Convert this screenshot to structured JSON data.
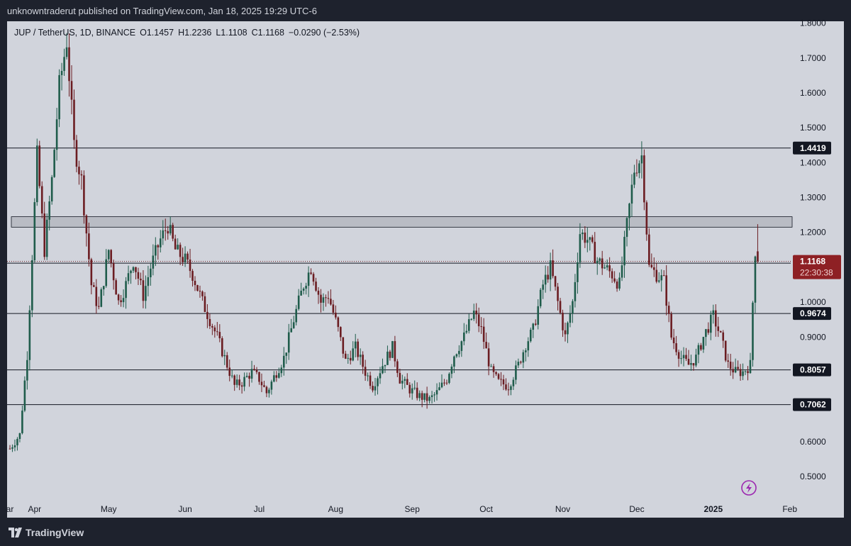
{
  "header": {
    "publisher": "unknowntraderut published on TradingView.com, Jan 18, 2025 19:29 UTC-6"
  },
  "legend": {
    "symbol": "JUP / TetherUS, 1D, BINANCE",
    "open": "O1.1457",
    "high": "H1.2236",
    "low": "L1.1108",
    "close": "C1.1168",
    "change": "−0.0290 (−2.53%)"
  },
  "footer": {
    "brand": "TradingView"
  },
  "colors": {
    "up": "#1f5c4b",
    "down": "#6b1d22",
    "price_tag": "#8e2024",
    "level_tag": "#131722",
    "axis_text": "#131722"
  },
  "chart_data": {
    "type": "candlestick",
    "timeframe": "1D",
    "ylim": [
      0.45,
      1.82
    ],
    "y_ticks": [
      0.5,
      0.6,
      0.7,
      0.8,
      0.9,
      1.0,
      1.1,
      1.2,
      1.3,
      1.4,
      1.5,
      1.6,
      1.7,
      1.8
    ],
    "y_tick_labels": [
      "0.5000",
      "0.6000",
      "0.7000",
      "0.8000",
      "0.9000",
      "1.0000",
      "1.1000",
      "1.2000",
      "1.3000",
      "1.4000",
      "1.5000",
      "1.6000",
      "1.7000",
      "1.8000"
    ],
    "x_labels": [
      {
        "label": "ar",
        "day": 0
      },
      {
        "label": "Apr",
        "day": 10
      },
      {
        "label": "May",
        "day": 40
      },
      {
        "label": "Jun",
        "day": 71
      },
      {
        "label": "Jul",
        "day": 101
      },
      {
        "label": "Aug",
        "day": 132
      },
      {
        "label": "Sep",
        "day": 163
      },
      {
        "label": "Oct",
        "day": 193
      },
      {
        "label": "Nov",
        "day": 224
      },
      {
        "label": "Dec",
        "day": 254
      },
      {
        "label": "2025",
        "day": 285,
        "bold": true
      },
      {
        "label": "Feb",
        "day": 316
      }
    ],
    "levels": [
      1.4419,
      1.1119,
      0.9674,
      0.8057,
      0.7062
    ],
    "level_labels": [
      "1.4419",
      "1.1119",
      "0.9674",
      "0.8057",
      "0.7062"
    ],
    "resistance_zone": [
      1.215,
      1.245
    ],
    "last_price": 1.1168,
    "last_price_label": "1.1168",
    "countdown": "22:30:38",
    "last_day": 303,
    "anchors": [
      [
        0,
        0.58
      ],
      [
        4,
        0.62
      ],
      [
        7,
        0.85
      ],
      [
        11,
        1.42
      ],
      [
        14,
        1.15
      ],
      [
        17,
        1.35
      ],
      [
        20,
        1.62
      ],
      [
        23,
        1.75
      ],
      [
        26,
        1.45
      ],
      [
        29,
        1.35
      ],
      [
        33,
        1.05
      ],
      [
        36,
        0.98
      ],
      [
        40,
        1.15
      ],
      [
        44,
        1.0
      ],
      [
        47,
        1.05
      ],
      [
        50,
        1.12
      ],
      [
        54,
        1.02
      ],
      [
        57,
        1.1
      ],
      [
        61,
        1.18
      ],
      [
        64,
        1.22
      ],
      [
        67,
        1.15
      ],
      [
        71,
        1.12
      ],
      [
        74,
        1.08
      ],
      [
        78,
        1.0
      ],
      [
        81,
        0.95
      ],
      [
        84,
        0.9
      ],
      [
        88,
        0.82
      ],
      [
        91,
        0.76
      ],
      [
        94,
        0.77
      ],
      [
        98,
        0.8
      ],
      [
        101,
        0.78
      ],
      [
        104,
        0.74
      ],
      [
        108,
        0.8
      ],
      [
        111,
        0.84
      ],
      [
        115,
        0.95
      ],
      [
        119,
        1.05
      ],
      [
        122,
        1.1
      ],
      [
        126,
        1.0
      ],
      [
        129,
        1.02
      ],
      [
        133,
        0.92
      ],
      [
        136,
        0.83
      ],
      [
        140,
        0.87
      ],
      [
        144,
        0.8
      ],
      [
        147,
        0.76
      ],
      [
        151,
        0.82
      ],
      [
        155,
        0.87
      ],
      [
        158,
        0.78
      ],
      [
        162,
        0.75
      ],
      [
        166,
        0.73
      ],
      [
        170,
        0.72
      ],
      [
        173,
        0.74
      ],
      [
        177,
        0.78
      ],
      [
        180,
        0.85
      ],
      [
        184,
        0.9
      ],
      [
        188,
        0.97
      ],
      [
        191,
        0.92
      ],
      [
        195,
        0.8
      ],
      [
        198,
        0.77
      ],
      [
        202,
        0.76
      ],
      [
        206,
        0.82
      ],
      [
        209,
        0.88
      ],
      [
        212,
        0.92
      ],
      [
        216,
        1.05
      ],
      [
        219,
        1.1
      ],
      [
        222,
        1.0
      ],
      [
        225,
        0.9
      ],
      [
        228,
        1.0
      ],
      [
        231,
        1.2
      ],
      [
        234,
        1.18
      ],
      [
        238,
        1.12
      ],
      [
        241,
        1.1
      ],
      [
        244,
        1.08
      ],
      [
        247,
        1.05
      ],
      [
        250,
        1.22
      ],
      [
        253,
        1.38
      ],
      [
        256,
        1.42
      ],
      [
        259,
        1.1
      ],
      [
        262,
        1.08
      ],
      [
        265,
        1.06
      ],
      [
        268,
        0.9
      ],
      [
        272,
        0.84
      ],
      [
        275,
        0.82
      ],
      [
        278,
        0.84
      ],
      [
        281,
        0.9
      ],
      [
        285,
        0.96
      ],
      [
        288,
        0.9
      ],
      [
        291,
        0.82
      ],
      [
        294,
        0.8
      ],
      [
        297,
        0.8
      ],
      [
        300,
        0.82
      ],
      [
        301,
        1.0
      ],
      [
        302,
        1.15
      ],
      [
        303,
        1.1168
      ]
    ]
  }
}
